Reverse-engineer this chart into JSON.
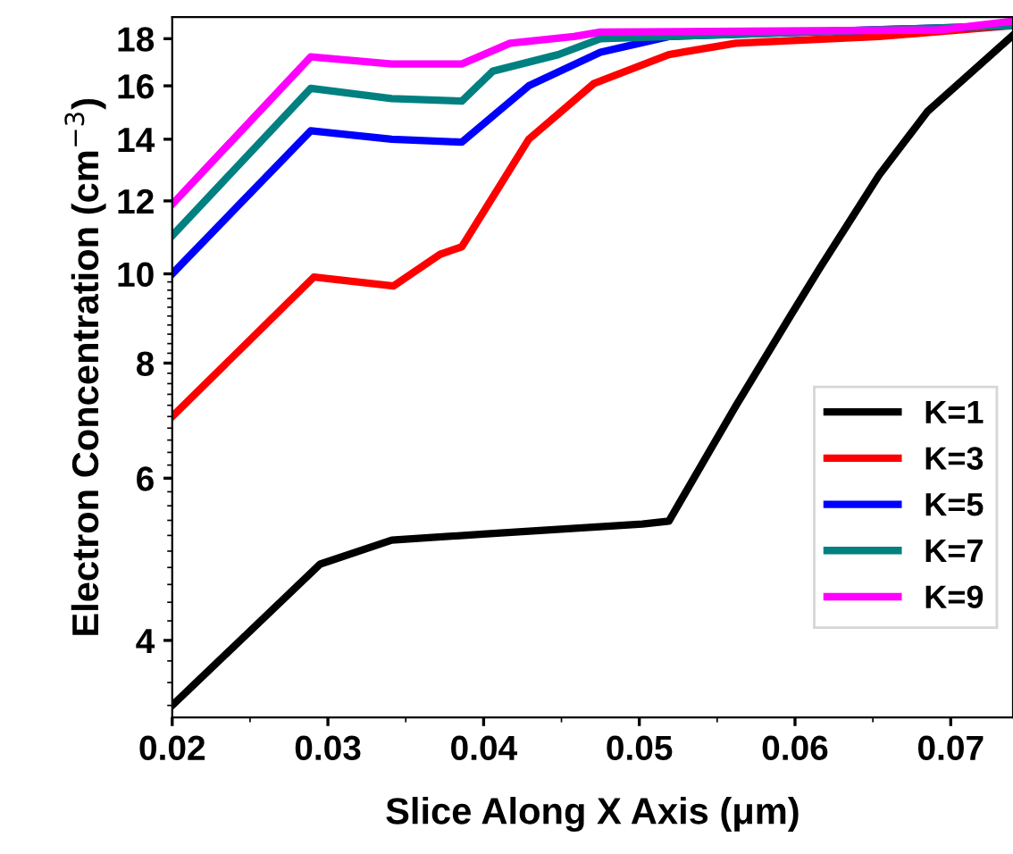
{
  "chart_data": {
    "type": "line",
    "xlabel": "Slice Along X Axis (μm)",
    "ylabel": "Electron Concentration (cm$^{−3}$)",
    "log": "y",
    "xlim": [
      0.02,
      0.074
    ],
    "xticks": [
      {
        "value": 0.02,
        "label": "0.02"
      },
      {
        "value": 0.03,
        "label": "0.03"
      },
      {
        "value": 0.04,
        "label": "0.04"
      },
      {
        "value": 0.05,
        "label": "0.05"
      },
      {
        "value": 0.06,
        "label": "0.06"
      },
      {
        "value": 0.07,
        "label": "0.07"
      }
    ],
    "ylim": [
      3.3,
      19
    ],
    "yticks": [
      4,
      6,
      8,
      10,
      12,
      14,
      16,
      18
    ],
    "grid": false,
    "legend": "right",
    "marker": "none",
    "line_style": "solid",
    "series": [
      {
        "name": "K=1",
        "color": "#000000",
        "x": [
          0.02,
          0.0295,
          0.0341,
          0.0402,
          0.0502,
          0.0519,
          0.0562,
          0.0597,
          0.0616,
          0.0654,
          0.0685,
          0.0739
        ],
        "values": [
          3.4,
          4.84,
          5.14,
          5.22,
          5.35,
          5.39,
          7.19,
          9.0,
          10.15,
          12.8,
          15.0,
          18.1
        ]
      },
      {
        "name": "K=3",
        "color": "#ff0000",
        "x": [
          0.02,
          0.0291,
          0.0342,
          0.0372,
          0.0386,
          0.0429,
          0.0471,
          0.0519,
          0.0562,
          0.0654,
          0.0739
        ],
        "values": [
          7.0,
          9.92,
          9.7,
          10.5,
          10.7,
          14.0,
          16.1,
          17.3,
          17.8,
          18.1,
          18.6
        ]
      },
      {
        "name": "K=5",
        "color": "#0000ff",
        "x": [
          0.02,
          0.0289,
          0.0341,
          0.0386,
          0.0429,
          0.0475,
          0.0519,
          0.0739
        ],
        "values": [
          10.0,
          14.3,
          14.0,
          13.9,
          16.0,
          17.4,
          18.1,
          18.6
        ]
      },
      {
        "name": "K=7",
        "color": "#008080",
        "x": [
          0.02,
          0.0289,
          0.0341,
          0.0386,
          0.0406,
          0.0448,
          0.0475,
          0.0519,
          0.0739
        ],
        "values": [
          11.0,
          15.9,
          15.5,
          15.4,
          16.6,
          17.3,
          18.0,
          18.1,
          18.6
        ]
      },
      {
        "name": "K=9",
        "color": "#ff00ff",
        "x": [
          0.02,
          0.0289,
          0.0341,
          0.0386,
          0.0417,
          0.0458,
          0.0475,
          0.0693,
          0.0739
        ],
        "values": [
          11.9,
          17.2,
          16.9,
          16.9,
          17.8,
          18.1,
          18.3,
          18.4,
          18.8
        ]
      }
    ]
  }
}
